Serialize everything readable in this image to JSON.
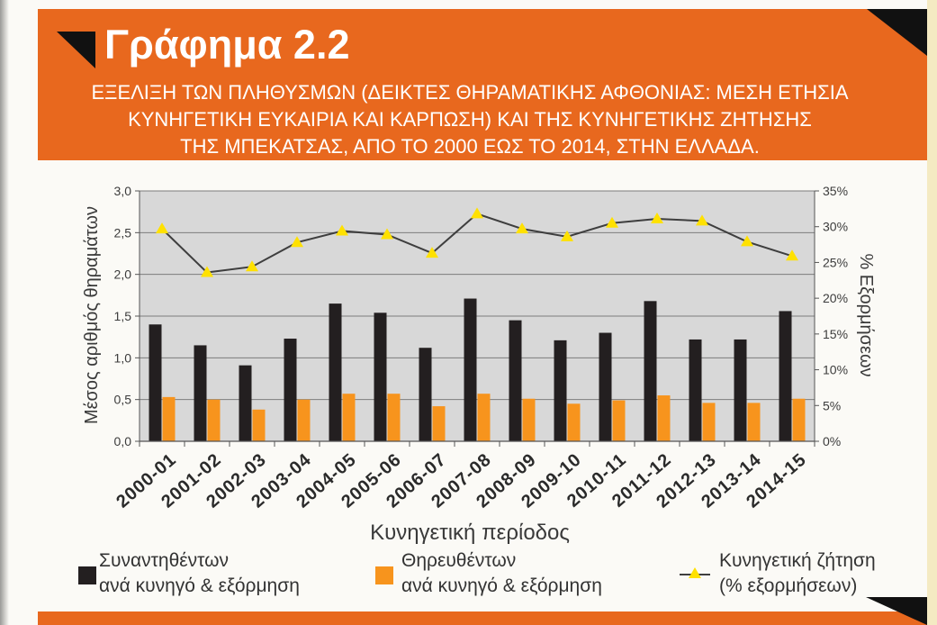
{
  "chart_data": {
    "type": "bar",
    "title": "Γράφημα 2.2",
    "subtitle": [
      "ΕΞΕΛΙΞΗ ΤΩΝ ΠΛΗΘΥΣΜΩΝ (ΔΕΙΚΤΕΣ ΘΗΡΑΜΑΤΙΚΗΣ ΑΦΘΟΝΙΑΣ: ΜΕΣΗ ΕΤΗΣΙΑ",
      "ΚΥΝΗΓΕΤΙΚΗ ΕΥΚΑΙΡΙΑ ΚΑΙ ΚΑΡΠΩΣΗ) ΚΑΙ ΤΗΣ ΚΥΝΗΓΕΤΙΚΗΣ ΖΗΤΗΣΗΣ",
      "ΤΗΣ ΜΠΕΚΑΤΣΑΣ, ΑΠΟ ΤΟ 2000 ΕΩΣ ΤΟ 2014, ΣΤΗΝ ΕΛΛΑΔΑ."
    ],
    "xlabel": "Κυνηγετική περίοδος",
    "ylabel": "Μέσος αριθμός θηραμάτων",
    "y2label": "% Εξορμήσεων",
    "ylim": [
      0,
      3
    ],
    "y2lim": [
      0,
      35
    ],
    "yticks": [
      "0,0",
      "0,5",
      "1,0",
      "1,5",
      "2,0",
      "2,5",
      "3,0"
    ],
    "y2ticks": [
      "0%",
      "5%",
      "10%",
      "15%",
      "20%",
      "25%",
      "30%",
      "35%"
    ],
    "grid": true,
    "legend_position": "bottom",
    "categories": [
      "2000-01",
      "2001-02",
      "2002-03",
      "2003-04",
      "2004-05",
      "2005-06",
      "2006-07",
      "2007-08",
      "2008-09",
      "2009-10",
      "2010-11",
      "2011-12",
      "2012-13",
      "2013-14",
      "2014-15"
    ],
    "series": [
      {
        "type": "bar",
        "axis": "left",
        "color": "#231f20",
        "label_lines": [
          "Συναντηθέντων",
          "ανά κυνηγό & εξόρμηση"
        ],
        "values": [
          1.4,
          1.15,
          0.91,
          1.23,
          1.65,
          1.54,
          1.12,
          1.71,
          1.45,
          1.21,
          1.3,
          1.68,
          1.22,
          1.22,
          1.56
        ]
      },
      {
        "type": "bar",
        "axis": "left",
        "color": "#f7941d",
        "label_lines": [
          "Θηρευθέντων",
          "ανά κυνηγό & εξόρμηση"
        ],
        "values": [
          0.53,
          0.5,
          0.38,
          0.5,
          0.57,
          0.57,
          0.42,
          0.57,
          0.51,
          0.45,
          0.49,
          0.55,
          0.46,
          0.46,
          0.51
        ]
      },
      {
        "type": "line",
        "axis": "right",
        "color": "#3e3e3e",
        "marker": "triangle",
        "marker_color": "#ffe100",
        "label_lines": [
          "Κυνηγετική ζήτηση",
          "(% εξορμήσεων)"
        ],
        "values": [
          29.7,
          23.6,
          24.4,
          27.8,
          29.4,
          28.9,
          26.3,
          31.8,
          29.7,
          28.6,
          30.5,
          31.1,
          30.8,
          27.9,
          25.9
        ]
      }
    ]
  },
  "theme": {
    "banner_color": "#e8681e",
    "plot_background": "#d8d8d8",
    "gridline_color": "#7c7c7c",
    "axis_color": "#555555"
  }
}
